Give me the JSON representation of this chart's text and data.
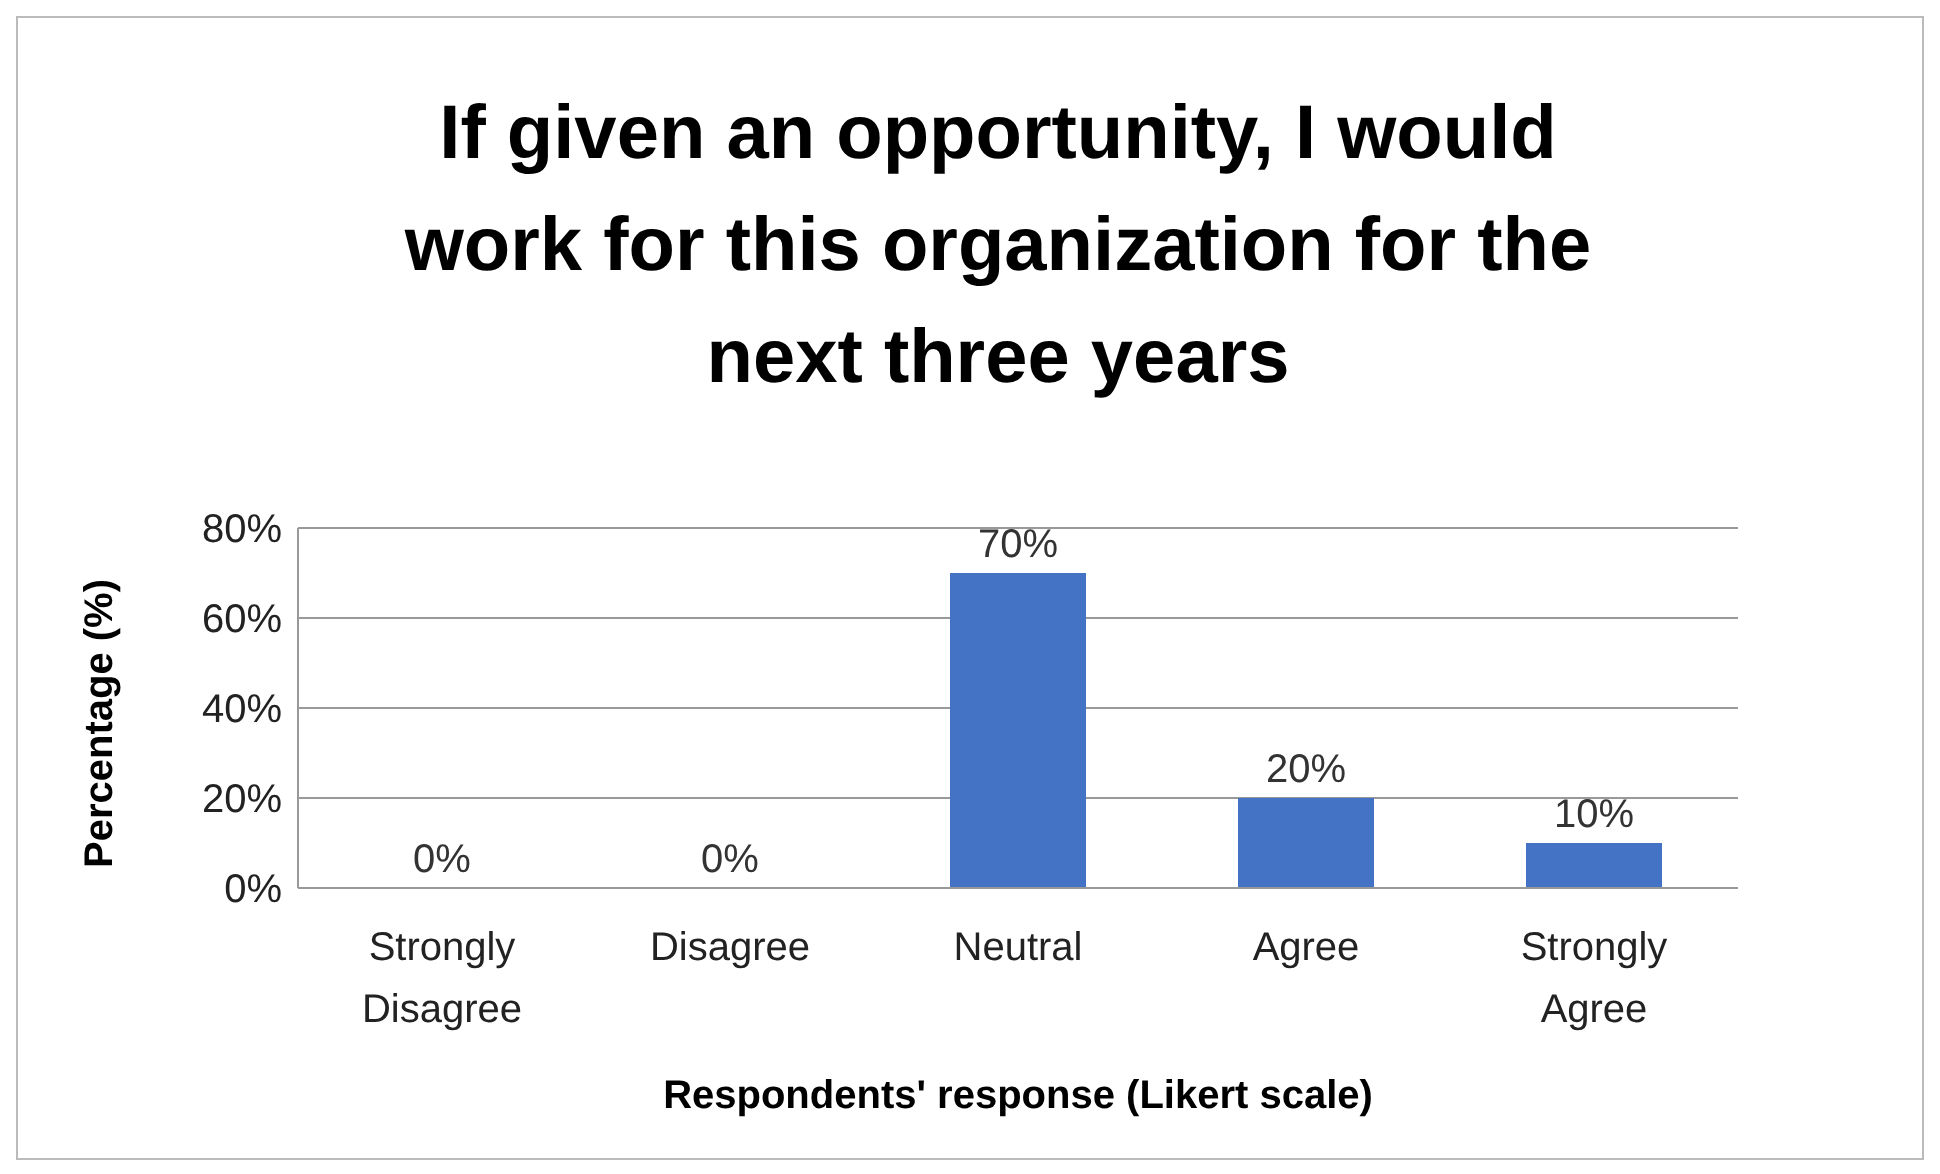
{
  "chart_data": {
    "type": "bar",
    "title": "If given an opportunity, I would work for this organization for the next three years",
    "xlabel": "Respondents' response (Likert scale)",
    "ylabel": "Percentage (%)",
    "categories": [
      "Strongly Disagree",
      "Disagree",
      "Neutral",
      "Agree",
      "Strongly Agree"
    ],
    "values": [
      0,
      0,
      70,
      20,
      10
    ],
    "color": "#4472c4",
    "value_labels": [
      "0%",
      "0%",
      "70%",
      "20%",
      "10%"
    ],
    "ylim": [
      0,
      80
    ],
    "yticks": [
      {
        "value": 0,
        "label": "0%"
      },
      {
        "value": 20,
        "label": "20%"
      },
      {
        "value": 40,
        "label": "40%"
      },
      {
        "value": 60,
        "label": "60%"
      },
      {
        "value": 80,
        "label": "80%"
      }
    ],
    "grid": "y"
  }
}
